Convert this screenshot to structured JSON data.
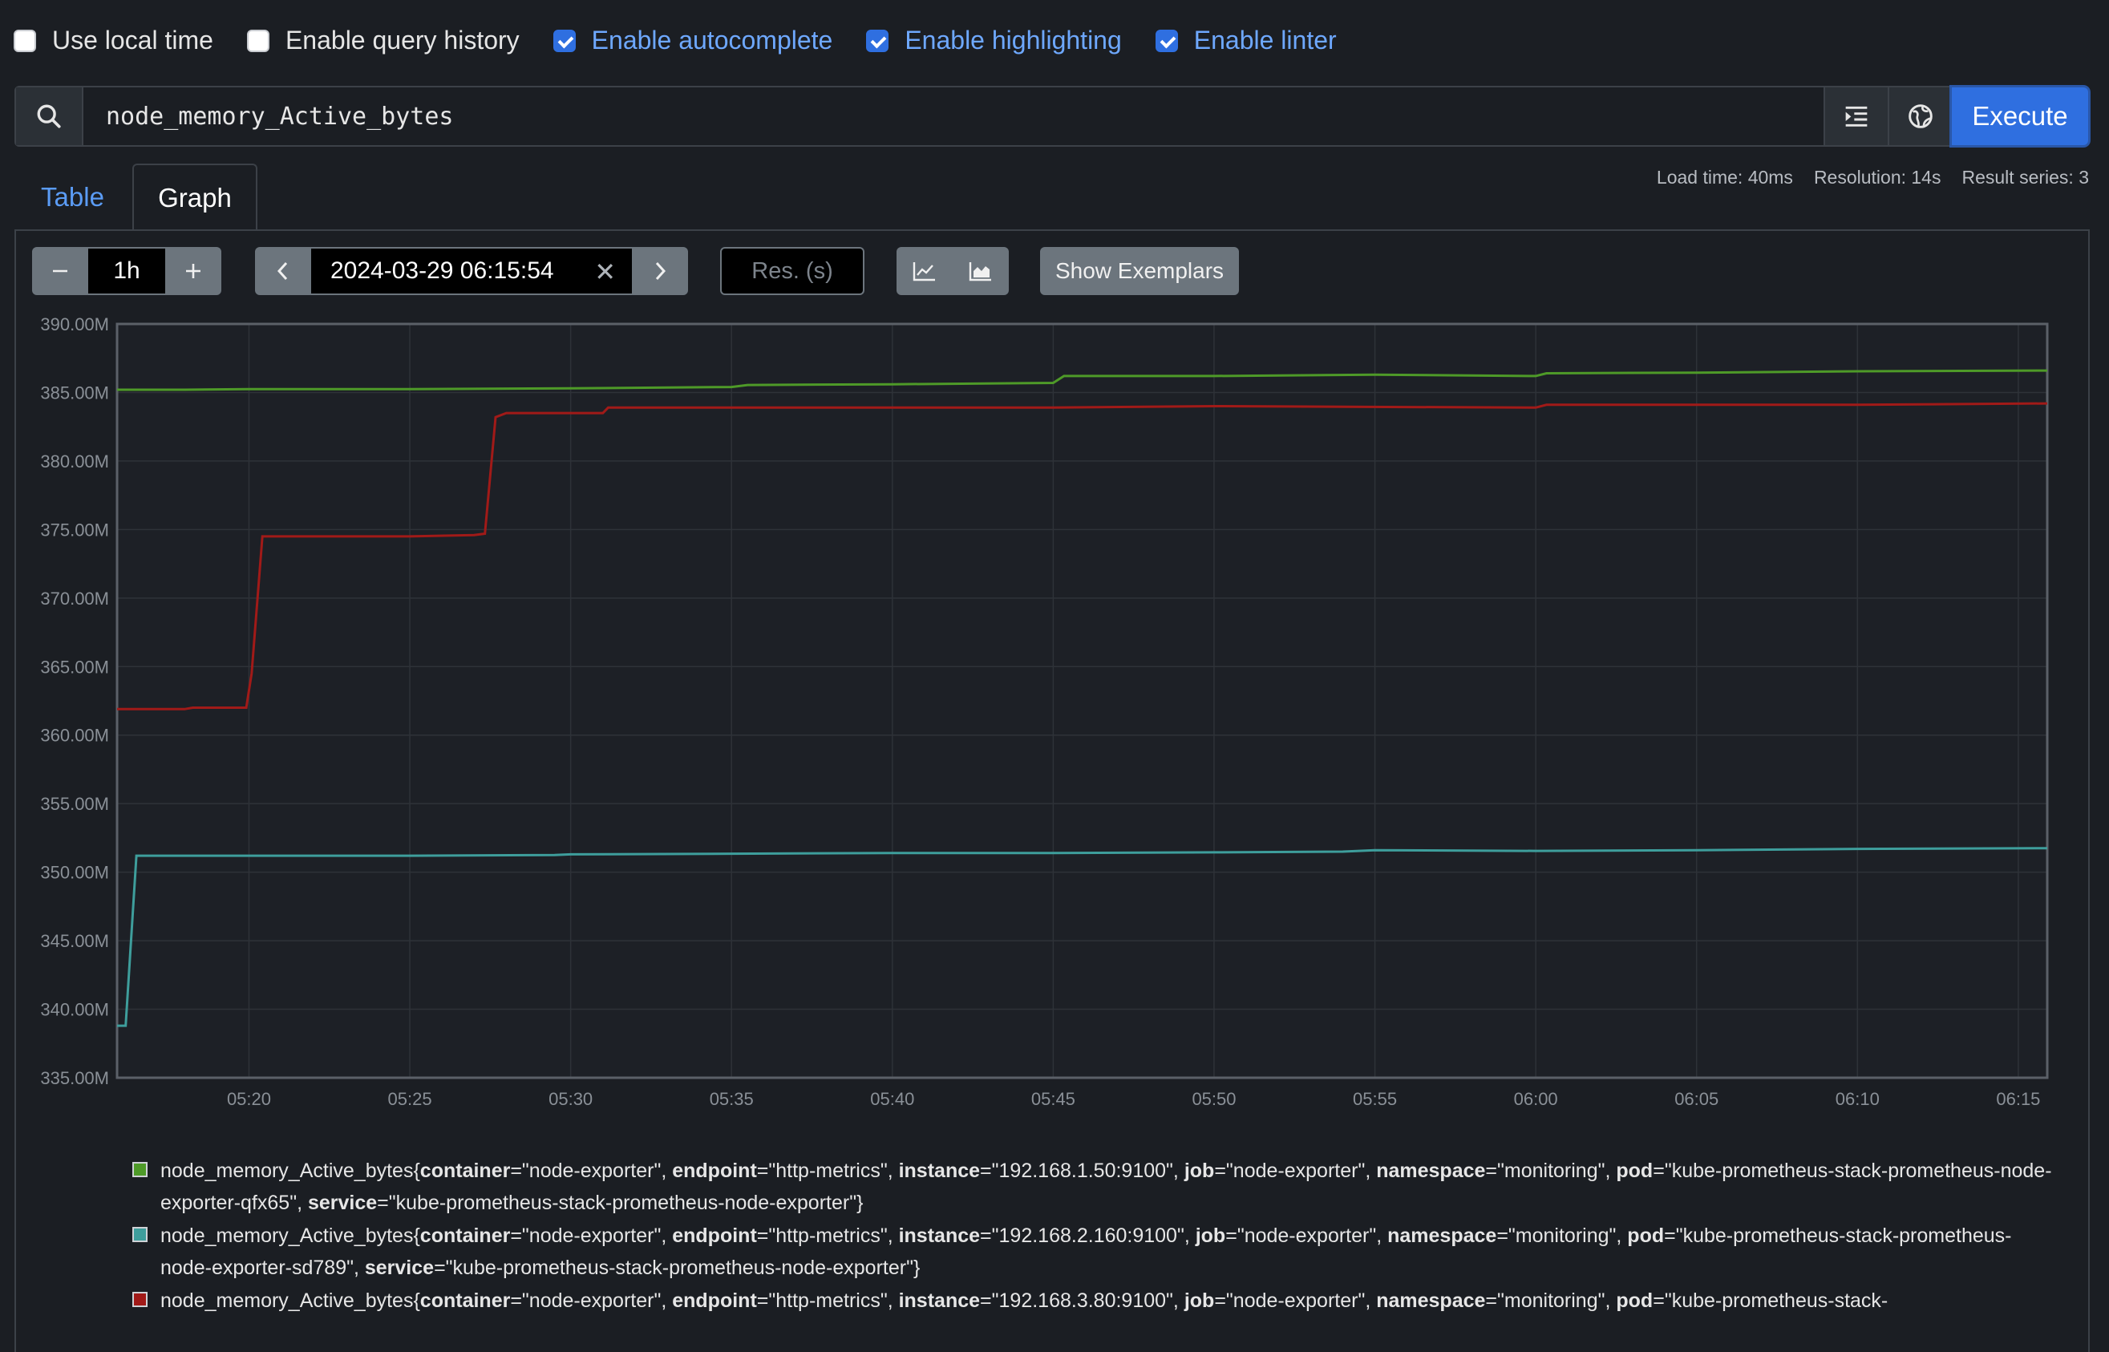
{
  "options": [
    {
      "label": "Use local time",
      "checked": false
    },
    {
      "label": "Enable query history",
      "checked": false
    },
    {
      "label": "Enable autocomplete",
      "checked": true
    },
    {
      "label": "Enable highlighting",
      "checked": true
    },
    {
      "label": "Enable linter",
      "checked": true
    }
  ],
  "query": {
    "value": "node_memory_Active_bytes",
    "execute_label": "Execute"
  },
  "tabs": {
    "table": "Table",
    "graph": "Graph"
  },
  "stats": {
    "load_time": "Load time: 40ms",
    "resolution": "Resolution: 14s",
    "result_series": "Result series: 3"
  },
  "controls": {
    "range": "1h",
    "end_time": "2024-03-29 06:15:54",
    "res_placeholder": "Res. (s)",
    "exemplars": "Show Exemplars"
  },
  "icons": [
    "search-icon",
    "format-icon",
    "metrics-explorer-icon",
    "minus-icon",
    "plus-icon",
    "chevron-left-icon",
    "clear-icon",
    "chevron-right-icon",
    "line-chart-icon",
    "stacked-chart-icon"
  ],
  "colors": {
    "accent": "#2f6fe0",
    "series_green": "#4e9a28",
    "series_teal": "#3e9e9c",
    "series_red": "#a11a18"
  },
  "chart_data": {
    "type": "line",
    "ylim": [
      335000000,
      390000000
    ],
    "yticks": [
      "335.00M",
      "340.00M",
      "345.00M",
      "350.00M",
      "355.00M",
      "360.00M",
      "365.00M",
      "370.00M",
      "375.00M",
      "380.00M",
      "385.00M",
      "390.00M"
    ],
    "xlim": [
      "05:15:54",
      "06:15:54"
    ],
    "xticks": [
      "05:20",
      "05:25",
      "05:30",
      "05:35",
      "05:40",
      "05:45",
      "05:50",
      "05:55",
      "06:00",
      "06:05",
      "06:10",
      "06:15"
    ],
    "grid": true,
    "series": [
      {
        "color": "#4e9a28",
        "points": [
          [
            "05:15:54",
            385.2
          ],
          [
            "05:18:00",
            385.2
          ],
          [
            "05:20:00",
            385.25
          ],
          [
            "05:25:00",
            385.25
          ],
          [
            "05:30:00",
            385.3
          ],
          [
            "05:35:00",
            385.4
          ],
          [
            "05:35:30",
            385.55
          ],
          [
            "05:40:00",
            385.6
          ],
          [
            "05:45:00",
            385.7
          ],
          [
            "05:45:20",
            386.2
          ],
          [
            "05:50:00",
            386.2
          ],
          [
            "05:55:00",
            386.3
          ],
          [
            "06:00:00",
            386.2
          ],
          [
            "06:00:20",
            386.4
          ],
          [
            "06:05:00",
            386.45
          ],
          [
            "06:10:00",
            386.55
          ],
          [
            "06:15:54",
            386.6
          ]
        ]
      },
      {
        "color": "#3e9e9c",
        "points": [
          [
            "05:15:54",
            338.8
          ],
          [
            "05:16:10",
            338.8
          ],
          [
            "05:16:30",
            351.2
          ],
          [
            "05:20:00",
            351.2
          ],
          [
            "05:25:00",
            351.2
          ],
          [
            "05:29:30",
            351.25
          ],
          [
            "05:30:00",
            351.3
          ],
          [
            "05:35:00",
            351.35
          ],
          [
            "05:40:00",
            351.4
          ],
          [
            "05:45:00",
            351.4
          ],
          [
            "05:50:00",
            351.45
          ],
          [
            "05:54:00",
            351.5
          ],
          [
            "05:55:00",
            351.6
          ],
          [
            "06:00:00",
            351.55
          ],
          [
            "06:05:00",
            351.6
          ],
          [
            "06:10:00",
            351.7
          ],
          [
            "06:15:54",
            351.75
          ]
        ]
      },
      {
        "color": "#a11a18",
        "points": [
          [
            "05:15:54",
            361.9
          ],
          [
            "05:18:00",
            361.9
          ],
          [
            "05:18:15",
            362.0
          ],
          [
            "05:19:55",
            362.0
          ],
          [
            "05:20:05",
            364.5
          ],
          [
            "05:20:25",
            374.5
          ],
          [
            "05:23:00",
            374.5
          ],
          [
            "05:25:00",
            374.5
          ],
          [
            "05:27:00",
            374.6
          ],
          [
            "05:27:20",
            374.7
          ],
          [
            "05:27:40",
            383.2
          ],
          [
            "05:28:00",
            383.5
          ],
          [
            "05:30:00",
            383.5
          ],
          [
            "05:31:00",
            383.5
          ],
          [
            "05:31:10",
            383.9
          ],
          [
            "05:35:00",
            383.9
          ],
          [
            "05:40:00",
            383.9
          ],
          [
            "05:45:00",
            383.9
          ],
          [
            "05:50:00",
            384.0
          ],
          [
            "06:00:00",
            383.9
          ],
          [
            "06:00:20",
            384.1
          ],
          [
            "06:10:00",
            384.1
          ],
          [
            "06:15:54",
            384.2
          ]
        ]
      }
    ]
  },
  "legend": [
    {
      "metric": "node_memory_Active_bytes{",
      "labels": [
        {
          "k": "container",
          "v": "=\"node-exporter\", "
        },
        {
          "k": "endpoint",
          "v": "=\"http-metrics\", "
        },
        {
          "k": "instance",
          "v": "=\"192.168.1.50:9100\", "
        },
        {
          "k": "job",
          "v": "=\"node-exporter\", "
        },
        {
          "k": "namespace",
          "v": "=\"monitoring\", "
        },
        {
          "k": "pod",
          "v": "=\"kube-prometheus-stack-prometheus-node-exporter-qfx65\", "
        },
        {
          "k": "service",
          "v": "=\"kube-prometheus-stack-prometheus-node-exporter\"}"
        }
      ]
    },
    {
      "metric": "node_memory_Active_bytes{",
      "labels": [
        {
          "k": "container",
          "v": "=\"node-exporter\", "
        },
        {
          "k": "endpoint",
          "v": "=\"http-metrics\", "
        },
        {
          "k": "instance",
          "v": "=\"192.168.2.160:9100\", "
        },
        {
          "k": "job",
          "v": "=\"node-exporter\", "
        },
        {
          "k": "namespace",
          "v": "=\"monitoring\", "
        },
        {
          "k": "pod",
          "v": "=\"kube-prometheus-stack-prometheus-node-exporter-sd789\", "
        },
        {
          "k": "service",
          "v": "=\"kube-prometheus-stack-prometheus-node-exporter\"}"
        }
      ]
    },
    {
      "metric": "node_memory_Active_bytes{",
      "labels": [
        {
          "k": "container",
          "v": "=\"node-exporter\", "
        },
        {
          "k": "endpoint",
          "v": "=\"http-metrics\", "
        },
        {
          "k": "instance",
          "v": "=\"192.168.3.80:9100\", "
        },
        {
          "k": "job",
          "v": "=\"node-exporter\", "
        },
        {
          "k": "namespace",
          "v": "=\"monitoring\", "
        },
        {
          "k": "pod",
          "v": "=\"kube-prometheus-stack-"
        }
      ]
    }
  ]
}
